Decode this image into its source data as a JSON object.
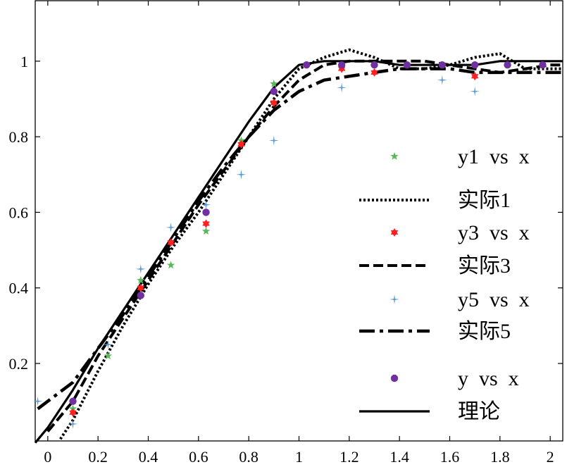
{
  "chart_data": {
    "type": "line",
    "title": "",
    "xlabel": "",
    "ylabel": "",
    "xlim": [
      -0.05,
      2.05
    ],
    "ylim": [
      -0.005,
      1.16
    ],
    "grid": false,
    "legend_placement": "right",
    "x_ticks": [
      "0",
      "0.2",
      "0.4",
      "0.6",
      "0.8",
      "1",
      "1.2",
      "1.4",
      "1.6",
      "1.8",
      "2"
    ],
    "y_ticks": [
      "0.2",
      "0.4",
      "0.6",
      "0.8",
      "1"
    ],
    "series": [
      {
        "name": "y1 vs x",
        "kind": "scatter",
        "marker": "star",
        "color": "#5cb85c",
        "x": [
          0.1,
          0.24,
          0.37,
          0.49,
          0.63,
          0.77,
          0.9
        ],
        "y": [
          0.08,
          0.22,
          0.42,
          0.46,
          0.55,
          0.79,
          0.94
        ]
      },
      {
        "name": "实际1",
        "kind": "line",
        "dash": "dotted",
        "color": "#000000",
        "x": [
          0.05,
          0.1,
          0.2,
          0.3,
          0.4,
          0.5,
          0.6,
          0.7,
          0.8,
          0.9,
          1.0,
          1.1,
          1.2,
          1.3,
          1.4,
          1.5,
          1.6,
          1.7,
          1.8,
          1.9,
          2.0,
          2.05
        ],
        "y": [
          0.0,
          0.05,
          0.18,
          0.3,
          0.41,
          0.51,
          0.6,
          0.7,
          0.8,
          0.9,
          0.98,
          1.01,
          1.03,
          1.01,
          0.98,
          0.98,
          0.99,
          1.01,
          1.02,
          0.98,
          0.98,
          0.98
        ]
      },
      {
        "name": "y3 vs x",
        "kind": "scatter",
        "marker": "hexagram",
        "color": "#ff2020",
        "x": [
          0.1,
          0.37,
          0.49,
          0.63,
          0.77,
          0.9,
          1.17,
          1.3,
          1.7
        ],
        "y": [
          0.07,
          0.4,
          0.52,
          0.57,
          0.78,
          0.89,
          0.98,
          0.97,
          0.96
        ]
      },
      {
        "name": "实际3",
        "kind": "line",
        "dash": "dashed",
        "color": "#000000",
        "x": [
          0.0,
          0.1,
          0.2,
          0.3,
          0.4,
          0.5,
          0.6,
          0.7,
          0.8,
          0.9,
          1.0,
          1.1,
          1.2,
          1.3,
          1.4,
          1.5,
          1.6,
          1.7,
          1.8,
          1.9,
          2.0,
          2.05
        ],
        "y": [
          0.02,
          0.1,
          0.22,
          0.32,
          0.42,
          0.52,
          0.62,
          0.71,
          0.8,
          0.88,
          0.95,
          0.99,
          1.0,
          1.0,
          1.0,
          1.0,
          0.99,
          0.98,
          0.97,
          0.98,
          0.99,
          0.99
        ]
      },
      {
        "name": "y5 vs x",
        "kind": "scatter",
        "marker": "plus4",
        "color": "#5b9bd5",
        "x": [
          -0.04,
          0.1,
          0.24,
          0.37,
          0.49,
          0.63,
          0.77,
          0.9,
          1.17,
          1.57,
          1.7
        ],
        "y": [
          0.1,
          0.04,
          0.25,
          0.45,
          0.56,
          0.62,
          0.7,
          0.79,
          0.93,
          0.95,
          0.92
        ]
      },
      {
        "name": "实际5",
        "kind": "line",
        "dash": "dashdot",
        "color": "#000000",
        "x": [
          -0.04,
          0.0,
          0.1,
          0.2,
          0.3,
          0.4,
          0.5,
          0.6,
          0.7,
          0.8,
          0.9,
          1.0,
          1.1,
          1.2,
          1.3,
          1.4,
          1.5,
          1.6,
          1.7,
          1.8,
          1.9,
          2.0,
          2.05
        ],
        "y": [
          0.08,
          0.1,
          0.15,
          0.24,
          0.33,
          0.43,
          0.53,
          0.63,
          0.72,
          0.8,
          0.87,
          0.92,
          0.95,
          0.96,
          0.97,
          0.98,
          0.98,
          0.98,
          0.97,
          0.97,
          0.97,
          0.97,
          0.97
        ]
      },
      {
        "name": "y vs x",
        "kind": "scatter",
        "marker": "circle",
        "color": "#7030a0",
        "x": [
          0.1,
          0.37,
          0.63,
          0.9,
          1.03,
          1.17,
          1.3,
          1.43,
          1.57,
          1.7,
          1.83,
          1.97
        ],
        "y": [
          0.1,
          0.38,
          0.6,
          0.92,
          0.99,
          0.99,
          0.99,
          0.99,
          0.99,
          0.99,
          0.99,
          0.99
        ]
      },
      {
        "name": "理论",
        "kind": "line",
        "dash": "solid",
        "color": "#000000",
        "x": [
          -0.05,
          0.0,
          0.1,
          0.2,
          0.3,
          0.4,
          0.5,
          0.6,
          0.7,
          0.8,
          0.9,
          1.0,
          1.1,
          1.2,
          1.3,
          1.4,
          1.5,
          1.6,
          1.7,
          1.8,
          1.9,
          2.0,
          2.05
        ],
        "y": [
          -0.01,
          0.03,
          0.13,
          0.24,
          0.34,
          0.44,
          0.54,
          0.64,
          0.74,
          0.84,
          0.93,
          0.99,
          1.0,
          1.0,
          1.0,
          0.99,
          0.99,
          0.99,
          0.99,
          1.0,
          1.0,
          1.0,
          1.0
        ]
      }
    ]
  }
}
